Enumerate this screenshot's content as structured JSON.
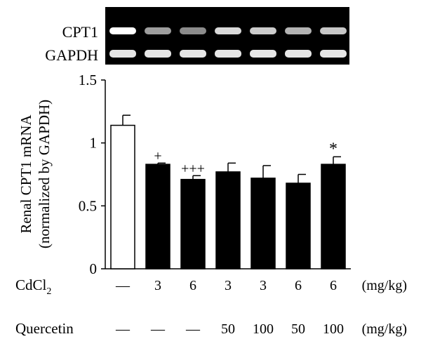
{
  "gel": {
    "band_labels": [
      "CPT1",
      "GAPDH"
    ],
    "lanes": 7,
    "cpt1_intensity": [
      1.0,
      0.62,
      0.55,
      0.85,
      0.8,
      0.7,
      0.78
    ],
    "gapdh_intensity": [
      0.9,
      0.9,
      0.9,
      0.9,
      0.9,
      0.9,
      0.9
    ]
  },
  "chart_data": {
    "type": "bar",
    "ylabel_line1": "Renal CPT1 mRNA",
    "ylabel_line2": "(normalized by GAPDH)",
    "ylim": [
      0,
      1.5
    ],
    "yticks": [
      "0",
      "0.5",
      "1",
      "1.5"
    ],
    "ytick_values": [
      0,
      0.5,
      1,
      1.5
    ],
    "values": [
      1.14,
      0.83,
      0.71,
      0.77,
      0.72,
      0.68,
      0.83
    ],
    "errors": [
      0.08,
      0.01,
      0.03,
      0.07,
      0.1,
      0.07,
      0.06
    ],
    "fill": [
      "#ffffff",
      "#000000",
      "#000000",
      "#000000",
      "#000000",
      "#000000",
      "#000000"
    ],
    "annotations": [
      "",
      "+",
      "+++",
      "",
      "",
      "",
      "*"
    ],
    "rows": [
      {
        "label": "CdCl",
        "label_sub": "2",
        "values": [
          "—",
          "3",
          "6",
          "3",
          "3",
          "6",
          "6"
        ],
        "unit": "(mg/kg)"
      },
      {
        "label": "Quercetin",
        "label_sub": "",
        "values": [
          "—",
          "—",
          "—",
          "50",
          "100",
          "50",
          "100"
        ],
        "unit": "(mg/kg)"
      }
    ]
  }
}
